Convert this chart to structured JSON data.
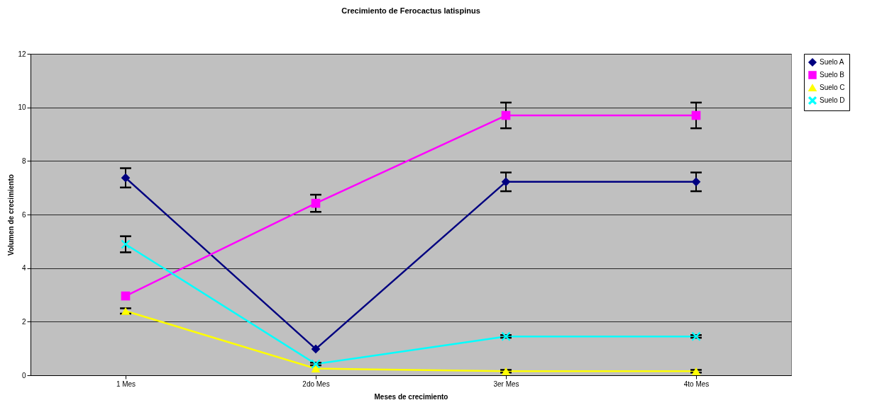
{
  "chart_data": {
    "type": "line",
    "title": "Crecimiento de Ferocactus latispinus",
    "xlabel": "Meses de crecimiento",
    "ylabel": "Volumen de crecimiento",
    "categories": [
      "1 Mes",
      "2do Mes",
      "3er Mes",
      "4to Mes"
    ],
    "series": [
      {
        "name": "Suelo A",
        "color": "#000080",
        "marker": "diamond",
        "values": [
          7.37,
          0.98,
          7.22,
          7.22
        ],
        "errors": [
          0.36,
          null,
          0.35,
          0.35
        ]
      },
      {
        "name": "Suelo B",
        "color": "#ff00ff",
        "marker": "square",
        "values": [
          2.96,
          6.42,
          9.7,
          9.7
        ],
        "errors": [
          null,
          0.32,
          0.48,
          0.48
        ]
      },
      {
        "name": "Suelo C",
        "color": "#ffff00",
        "marker": "triangle",
        "values": [
          2.4,
          0.25,
          0.15,
          0.15
        ],
        "errors": [
          0.1,
          null,
          0.05,
          0.05
        ]
      },
      {
        "name": "Suelo D",
        "color": "#00ffff",
        "marker": "cross",
        "values": [
          4.89,
          0.42,
          1.45,
          1.45
        ],
        "errors": [
          0.3,
          0.05,
          0.05,
          0.05
        ]
      }
    ],
    "ylim": [
      0,
      12
    ],
    "yticks": [
      0,
      2,
      4,
      6,
      8,
      10,
      12
    ],
    "grid": "y",
    "legend": "right"
  }
}
